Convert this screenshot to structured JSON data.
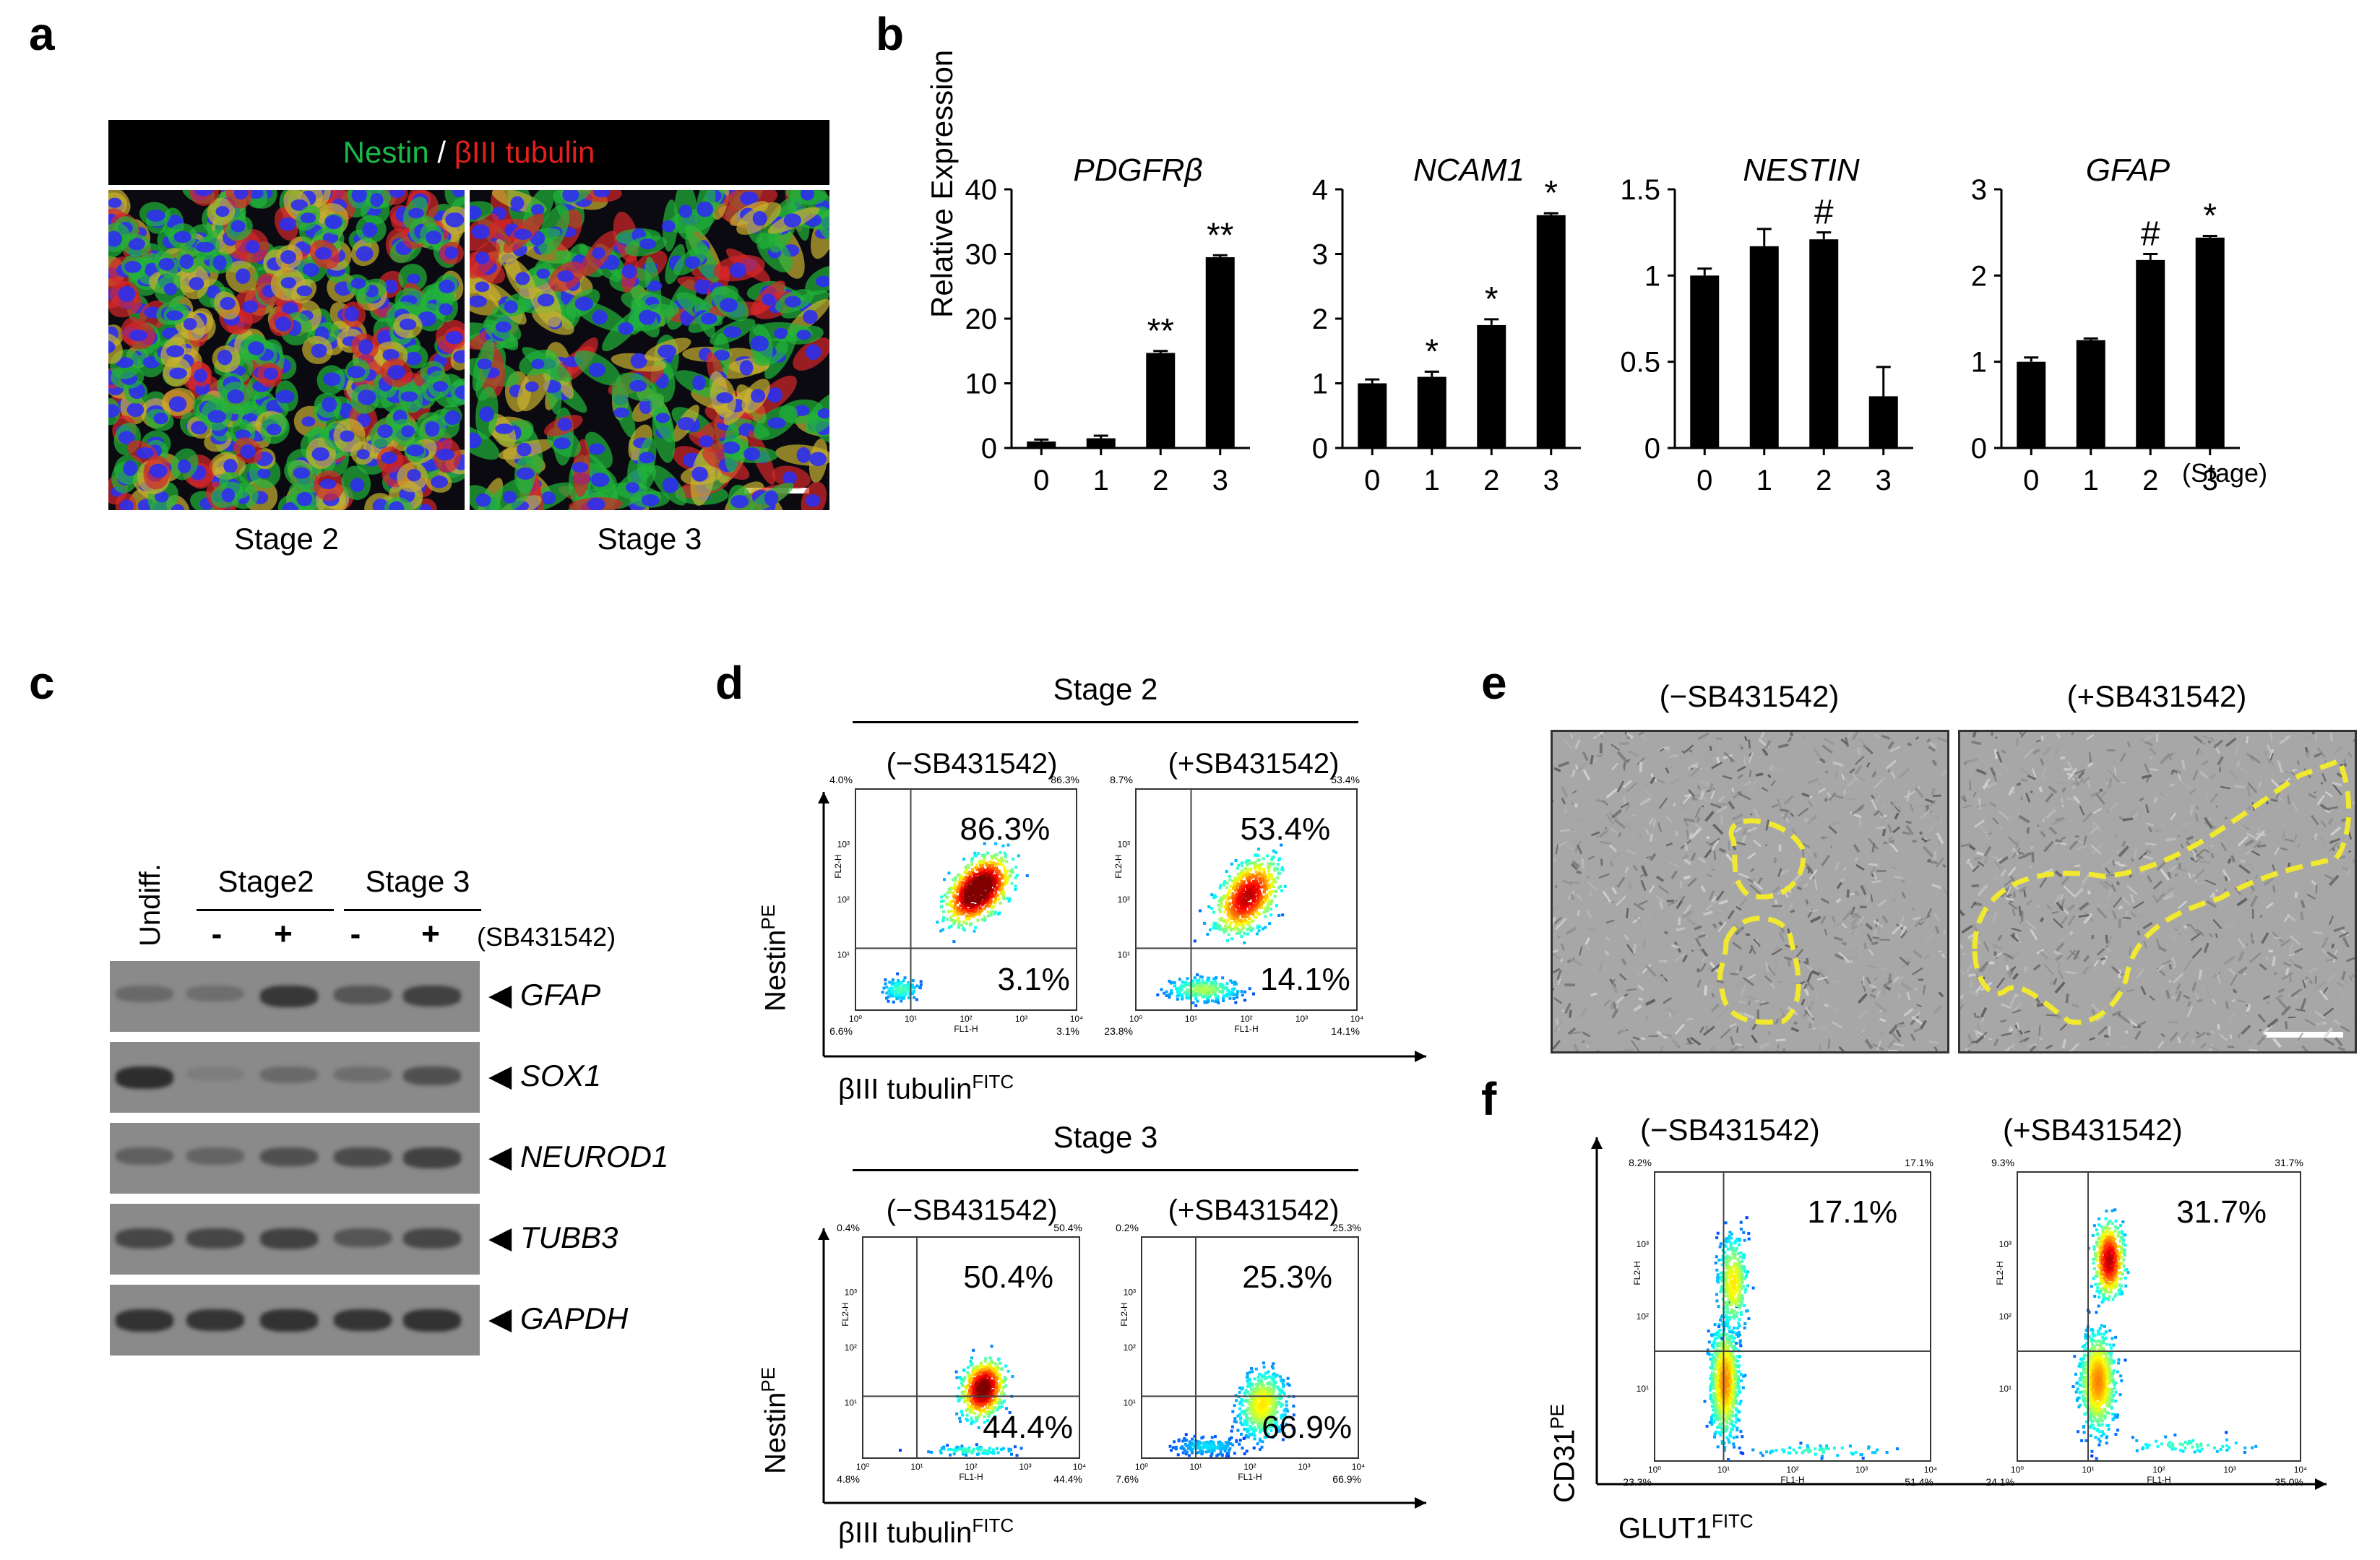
{
  "panels": {
    "a": {
      "label": "a",
      "header": {
        "nestin": "Nestin",
        "sep": " / ",
        "tubulin": "βIII tubulin"
      },
      "captions": [
        "Stage 2",
        "Stage 3"
      ]
    },
    "b": {
      "label": "b",
      "ylabel": "Relative Expression",
      "stage_unit": "(Stage)"
    },
    "c": {
      "label": "c",
      "undiff": "Undiff.",
      "stage2": "Stage2",
      "stage3": "Stage 3",
      "treatments": [
        "-",
        "+",
        "-",
        "+"
      ],
      "treatment_label": "(SB431542)",
      "genes": [
        "GFAP",
        "SOX1",
        "NEUROD1",
        "TUBB3",
        "GAPDH"
      ],
      "arrow": "◀"
    },
    "d": {
      "label": "d",
      "stage2": "Stage 2",
      "stage3": "Stage 3",
      "minus": "(−SB431542)",
      "plus": "(+SB431542)",
      "ylabel_main": "Nestin",
      "ylabel_sup": "PE",
      "xlabel_main": "βIII tubulin",
      "xlabel_sup": "FITC",
      "s2_minus": {
        "q2": "86.3%",
        "q4": "3.1%",
        "tl": "4.0%",
        "tr": "86.3%",
        "bl": "6.6%",
        "br": "3.1%"
      },
      "s2_plus": {
        "q2": "53.4%",
        "q4": "14.1%",
        "tl": "8.7%",
        "tr": "53.4%",
        "bl": "23.8%",
        "br": "14.1%"
      },
      "s3_minus": {
        "q2": "50.4%",
        "q4": "44.4%",
        "tl": "0.4%",
        "tr": "50.4%",
        "bl": "4.8%",
        "br": "44.4%"
      },
      "s3_plus": {
        "q2": "25.3%",
        "q4": "66.9%",
        "tl": "0.2%",
        "tr": "25.3%",
        "bl": "7.6%",
        "br": "66.9%"
      }
    },
    "e": {
      "label": "e",
      "minus": "(−SB431542)",
      "plus": "(+SB431542)"
    },
    "f": {
      "label": "f",
      "minus": "(−SB431542)",
      "plus": "(+SB431542)",
      "ylabel_main": "CD31",
      "ylabel_sup": "PE",
      "xlabel_main": "GLUT1",
      "xlabel_sup": "FITC",
      "minus_vals": {
        "q2": "17.1%",
        "tl": "8.2%",
        "tr": "17.1%",
        "bl": "23.3%",
        "br": "51.4%"
      },
      "plus_vals": {
        "q2": "31.7%",
        "tl": "9.3%",
        "tr": "31.7%",
        "bl": "24.1%",
        "br": "35.0%"
      }
    },
    "flow_axis": {
      "ticks": [
        "10⁰",
        "10¹",
        "10²",
        "10³",
        "10⁴"
      ],
      "x_name": "FL1-H",
      "y_name": "FL2-H"
    }
  },
  "chart_data": [
    {
      "type": "bar",
      "title": "PDGFRβ",
      "categories": [
        "0",
        "1",
        "2",
        "3"
      ],
      "values": [
        1.0,
        1.5,
        14.7,
        29.5
      ],
      "errors": [
        0.3,
        0.4,
        0.3,
        0.3
      ],
      "ylim": [
        0,
        40
      ],
      "yticks": [
        0,
        10,
        20,
        30,
        40
      ],
      "annotations": [
        "",
        "",
        "**",
        "**"
      ]
    },
    {
      "type": "bar",
      "title": "NCAM1",
      "categories": [
        "0",
        "1",
        "2",
        "3"
      ],
      "values": [
        1.0,
        1.1,
        1.9,
        3.6
      ],
      "errors": [
        0.06,
        0.08,
        0.09,
        0.03
      ],
      "ylim": [
        0,
        4
      ],
      "yticks": [
        0,
        1,
        2,
        3,
        4
      ],
      "annotations": [
        "",
        "*",
        "*",
        "*"
      ]
    },
    {
      "type": "bar",
      "title": "NESTIN",
      "categories": [
        "0",
        "1",
        "2",
        "3"
      ],
      "values": [
        1.0,
        1.17,
        1.21,
        0.3
      ],
      "errors": [
        0.04,
        0.1,
        0.04,
        0.17
      ],
      "ylim": [
        0,
        1.5
      ],
      "yticks": [
        0,
        0.5,
        1,
        1.5
      ],
      "annotations": [
        "",
        "",
        "#",
        ""
      ]
    },
    {
      "type": "bar",
      "title": "GFAP",
      "categories": [
        "0",
        "1",
        "2",
        "3"
      ],
      "values": [
        1.0,
        1.25,
        2.18,
        2.44
      ],
      "errors": [
        0.05,
        0.02,
        0.07,
        0.02
      ],
      "ylim": [
        0,
        3
      ],
      "yticks": [
        0,
        1,
        2,
        3
      ],
      "annotations": [
        "",
        "",
        "#",
        "*"
      ]
    }
  ]
}
